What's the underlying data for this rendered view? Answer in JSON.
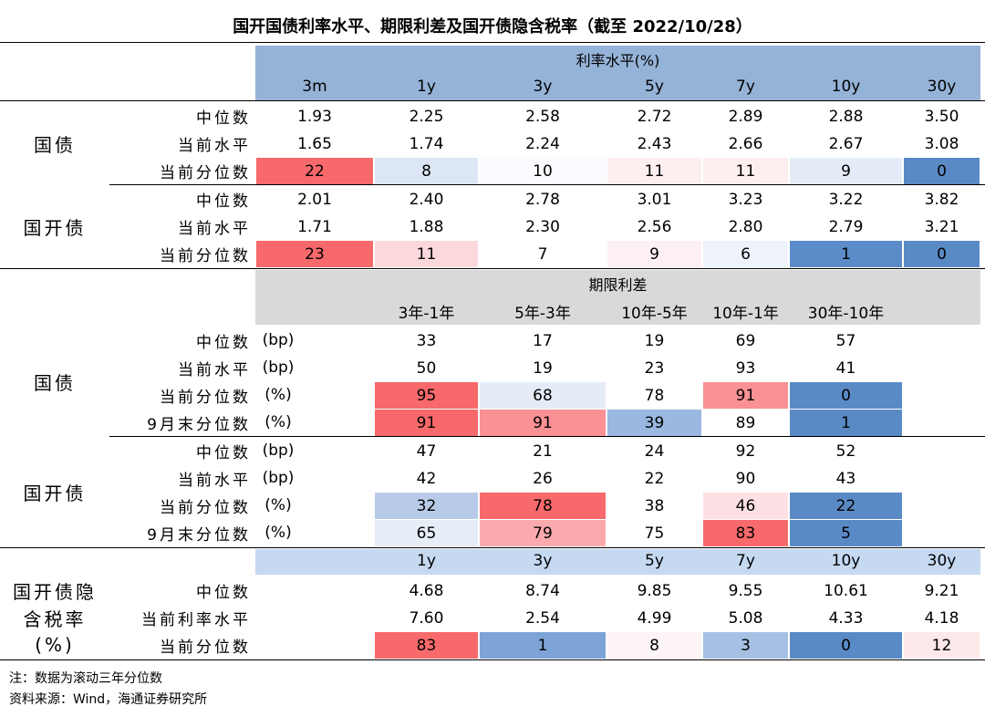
{
  "title": "国开国债利率水平、期限利差及国开债隐含税率（截至 2022/10/28）",
  "sections": [
    {
      "header": "利率水平(%)",
      "columns": [
        "3m",
        "1y",
        "3y",
        "5y",
        "7y",
        "10y",
        "30y"
      ],
      "groups": [
        {
          "label": [
            "国债"
          ],
          "rows": [
            {
              "label": "中位数",
              "values": [
                "1.93",
                "2.25",
                "2.58",
                "2.72",
                "2.89",
                "2.88",
                "3.50"
              ]
            },
            {
              "label": "当前水平",
              "values": [
                "1.65",
                "1.74",
                "2.24",
                "2.43",
                "2.66",
                "2.67",
                "3.08"
              ]
            },
            {
              "label": "当前分位数",
              "values": [
                "22",
                "8",
                "10",
                "11",
                "11",
                "9",
                "0"
              ],
              "colors": [
                "#f8696b",
                "#dce6f4",
                "#fafbfe",
                "#fdeef0",
                "#fdeef0",
                "#e6ecf7",
                "#5a8ac6"
              ]
            }
          ]
        },
        {
          "label": [
            "国开债"
          ],
          "rows": [
            {
              "label": "中位数",
              "values": [
                "2.01",
                "2.40",
                "2.78",
                "3.01",
                "3.23",
                "3.22",
                "3.82"
              ]
            },
            {
              "label": "当前水平",
              "values": [
                "1.71",
                "1.88",
                "2.30",
                "2.56",
                "2.80",
                "2.79",
                "3.21"
              ]
            },
            {
              "label": "当前分位数",
              "values": [
                "23",
                "11",
                "7",
                "9",
                "6",
                "1",
                "0"
              ],
              "colors": [
                "#f8696b",
                "#fbd8dc",
                "#ffffff",
                "#fdf0f2",
                "#eef2fa",
                "#5b8bc9",
                "#5a8ac6"
              ]
            }
          ]
        }
      ]
    },
    {
      "header": "期限利差",
      "columns": [
        "3年-1年",
        "5年-3年",
        "10年-5年",
        "10年-1年",
        "30年-10年"
      ],
      "groups": [
        {
          "label": [
            "国债"
          ],
          "rows": [
            {
              "label": "中位数",
              "unit": "(bp)",
              "values": [
                "33",
                "17",
                "19",
                "69",
                "57"
              ]
            },
            {
              "label": "当前水平",
              "unit": "(bp)",
              "values": [
                "50",
                "19",
                "23",
                "93",
                "41"
              ]
            },
            {
              "label": "当前分位数",
              "unit": "(%)",
              "values": [
                "95",
                "68",
                "78",
                "91",
                "0"
              ],
              "colors": [
                "#f8696b",
                "#e5ecf7",
                "#ffffff",
                "#f99195",
                "#5a8ac6"
              ]
            },
            {
              "label": "9月末分位数",
              "unit": "(%)",
              "values": [
                "91",
                "91",
                "39",
                "89",
                "1"
              ],
              "colors": [
                "#f8696b",
                "#f99195",
                "#9ab8e0",
                "#ffffff",
                "#5a8ac6"
              ]
            }
          ]
        },
        {
          "label": [
            "国开债"
          ],
          "rows": [
            {
              "label": "中位数",
              "unit": "(bp)",
              "values": [
                "47",
                "21",
                "24",
                "92",
                "52"
              ]
            },
            {
              "label": "当前水平",
              "unit": "(bp)",
              "values": [
                "42",
                "26",
                "22",
                "90",
                "43"
              ]
            },
            {
              "label": "当前分位数",
              "unit": "(%)",
              "values": [
                "32",
                "78",
                "38",
                "46",
                "22"
              ],
              "colors": [
                "#b7cbe8",
                "#f8696b",
                "#ffffff",
                "#fde0e3",
                "#5a8ac6"
              ]
            },
            {
              "label": "9月末分位数",
              "unit": "(%)",
              "values": [
                "65",
                "79",
                "75",
                "83",
                "5"
              ],
              "colors": [
                "#e7edf7",
                "#faaaad",
                "#ffffff",
                "#f8696b",
                "#5a8ac6"
              ]
            }
          ]
        }
      ]
    },
    {
      "columns": [
        "1y",
        "3y",
        "5y",
        "7y",
        "10y",
        "30y"
      ],
      "groups": [
        {
          "label": [
            "国开债隐",
            "含税率",
            "(%)"
          ],
          "rows": [
            {
              "label": "中位数",
              "values": [
                "4.68",
                "8.74",
                "9.85",
                "9.55",
                "10.61",
                "9.21"
              ]
            },
            {
              "label": "当前利率水平",
              "values": [
                "7.60",
                "2.54",
                "4.99",
                "5.08",
                "4.33",
                "4.18"
              ]
            },
            {
              "label": "当前分位数",
              "values": [
                "83",
                "1",
                "8",
                "3",
                "0",
                "12"
              ],
              "colors": [
                "#f8696b",
                "#7ea3d6",
                "#fdf4f5",
                "#a6c0e4",
                "#5a8ac6",
                "#fde8ea"
              ]
            }
          ]
        }
      ]
    }
  ],
  "notes": [
    "注：数据为滚动三年分位数",
    "资料来源：Wind，海通证券研究所"
  ]
}
